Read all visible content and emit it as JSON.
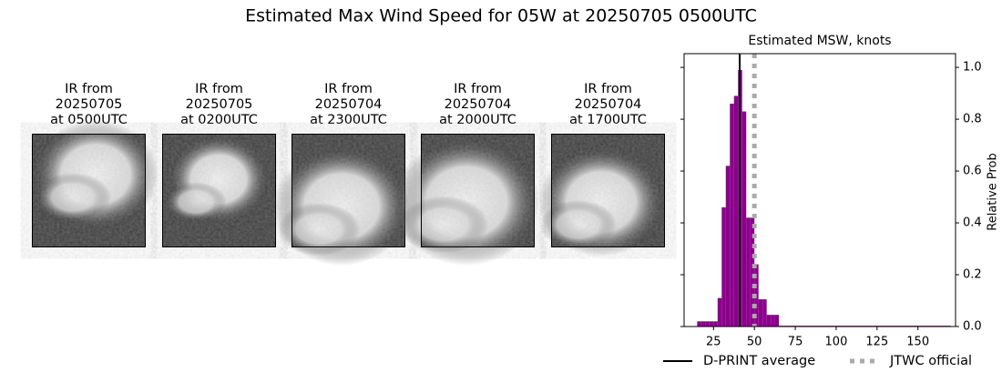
{
  "title": "Estimated Max Wind Speed for 05W at 20250705 0500UTC",
  "panels": [
    {
      "caption": [
        "IR from",
        "20250705",
        "at 0500UTC"
      ]
    },
    {
      "caption": [
        "IR from",
        "20250705",
        "at 0200UTC"
      ]
    },
    {
      "caption": [
        "IR from",
        "20250704",
        "at 2300UTC"
      ]
    },
    {
      "caption": [
        "IR from",
        "20250704",
        "at 2000UTC"
      ]
    },
    {
      "caption": [
        "IR from",
        "20250704",
        "at 1700UTC"
      ]
    }
  ],
  "chart_data": {
    "type": "histogram",
    "title": "Estimated MSW, knots",
    "y_label": "Relative Prob",
    "color": "#8b008b",
    "bins": [
      15,
      17.5,
      20,
      22.5,
      25,
      27.5,
      30,
      32.5,
      35,
      37.5,
      40,
      42.5,
      45,
      47.5,
      50,
      52.5,
      55,
      57.5,
      60,
      62.5,
      65,
      170
    ],
    "values": [
      0.02,
      0.02,
      0.02,
      0.02,
      0.02,
      0.11,
      0.46,
      0.62,
      0.86,
      0.89,
      0.99,
      0.83,
      0.42,
      0.42,
      0.24,
      0.105,
      0.105,
      0.045,
      0.045,
      0.045,
      0.003
    ],
    "xlim": [
      7,
      173
    ],
    "ylim": [
      0,
      1.053
    ],
    "xticks": [
      25,
      50,
      75,
      100,
      125,
      150
    ],
    "yticks": [
      {
        "value": 0,
        "label": "0.0"
      },
      {
        "value": 0.2,
        "label": "0.2"
      },
      {
        "value": 0.4,
        "label": "0.4"
      },
      {
        "value": 0.6,
        "label": "0.6"
      },
      {
        "value": 0.8,
        "label": "0.8"
      },
      {
        "value": 1,
        "label": "1.0"
      }
    ],
    "lines": [
      {
        "name": "D-PRINT average",
        "value": 41,
        "color": "#000000",
        "style": "solid"
      },
      {
        "name": "JTWC official",
        "value": 50,
        "color": "#aaaaaa",
        "style": "dotted"
      }
    ]
  }
}
